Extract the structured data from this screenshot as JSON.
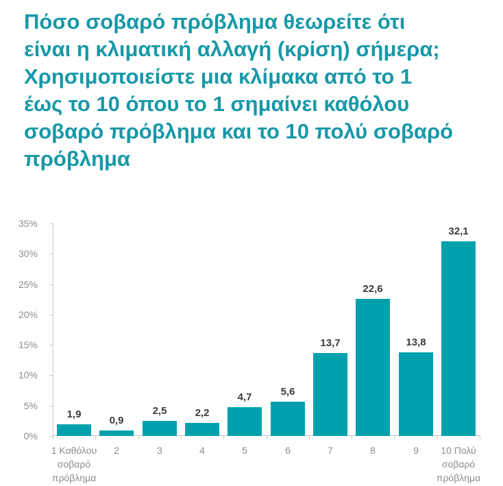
{
  "title": {
    "text": "Πόσο σοβαρό πρόβλημα θεωρείτε ότι είναι η κλιματική αλλαγή (κρίση) σήμερα; Χρησιμοποιείστε μια κλίμακα από το 1 έως το 10 όπου το 1 σημαίνει καθόλου σοβαρό πρόβλημα και το 10 πολύ σοβαρό πρόβλημα",
    "lines": [
      "Πόσο σοβαρό πρόβλημα θεωρείτε ότι",
      "είναι η κλιματική αλλαγή (κρίση) σήμερα;",
      "Χρησιμοποιείστε μια κλίμακα από το 1",
      "έως το 10 όπου το 1 σημαίνει καθόλου",
      "σοβαρό πρόβλημα και το 10 πολύ σοβαρό",
      "πρόβλημα"
    ],
    "color": "#1798A8"
  },
  "chart_data": {
    "type": "bar",
    "categories": [
      "1 Καθόλου σοβαρό πρόβλημα",
      "2",
      "3",
      "4",
      "5",
      "6",
      "7",
      "8",
      "9",
      "10 Πολύ σοβαρό πρόβλημα"
    ],
    "category_lines": [
      [
        "1 Καθόλου",
        "σοβαρό",
        "πρόβλημα"
      ],
      [
        "2"
      ],
      [
        "3"
      ],
      [
        "4"
      ],
      [
        "5"
      ],
      [
        "6"
      ],
      [
        "7"
      ],
      [
        "8"
      ],
      [
        "9"
      ],
      [
        "10 Πολύ",
        "σοβαρό",
        "πρόβλημα"
      ]
    ],
    "values": [
      1.9,
      0.9,
      2.5,
      2.2,
      4.7,
      5.6,
      13.7,
      22.6,
      13.8,
      32.1
    ],
    "value_labels": [
      "1,9",
      "0,9",
      "2,5",
      "2,2",
      "4,7",
      "5,6",
      "13,7",
      "22,6",
      "13,8",
      "32,1"
    ],
    "title": "Πόσο σοβαρό πρόβλημα θεωρείτε ότι είναι η κλιματική αλλαγή (κρίση) σήμερα; Χρησιμοποιείστε μια κλίμακα από το 1 έως το 10 όπου το 1 σημαίνει καθόλου σοβαρό πρόβλημα και το 10 πολύ σοβαρό πρόβλημα",
    "xlabel": "",
    "ylabel": "",
    "ylim": [
      0,
      35
    ],
    "ytick_step": 5,
    "ytick_labels": [
      "0%",
      "5%",
      "10%",
      "15%",
      "20%",
      "25%",
      "30%",
      "35%"
    ],
    "grid": false,
    "legend": null,
    "bar_color": "#00A1AD",
    "value_label_color": "#3A3A3A",
    "axis_label_color": "#8C8C8C",
    "axis_line_color": "#C9C9C9"
  }
}
